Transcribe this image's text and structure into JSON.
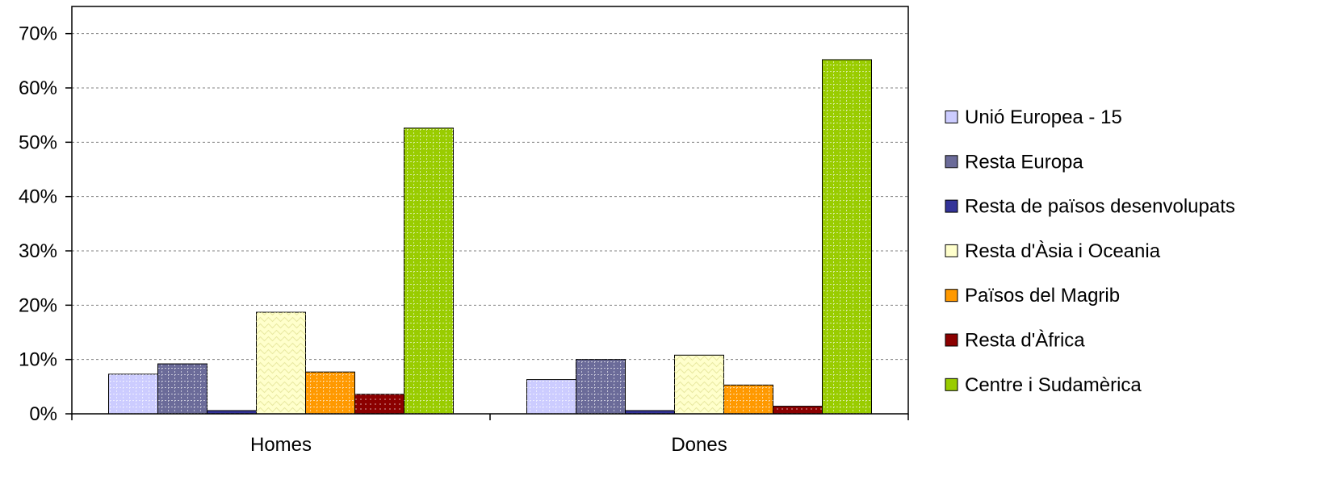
{
  "chart_data": {
    "type": "bar",
    "categories": [
      "Homes",
      "Dones"
    ],
    "y_ticks": [
      "0%",
      "10%",
      "20%",
      "30%",
      "40%",
      "50%",
      "60%",
      "70%"
    ],
    "ylim": [
      0,
      75
    ],
    "grid": true,
    "legend_position": "right",
    "series": [
      {
        "name": "Unió Europea - 15",
        "values": [
          7.3,
          6.3
        ],
        "color": "#ccccff"
      },
      {
        "name": "Resta Europa",
        "values": [
          9.2,
          10.0
        ],
        "color": "#6b6b99"
      },
      {
        "name": "Resta de països desenvolupats",
        "values": [
          0.6,
          0.6
        ],
        "color": "#333399"
      },
      {
        "name": "Resta d'Àsia i Oceania",
        "values": [
          18.7,
          10.8
        ],
        "color": "#ffffcc"
      },
      {
        "name": "Països del Magrib",
        "values": [
          7.7,
          5.3
        ],
        "color": "#ff9900"
      },
      {
        "name": "Resta d'Àfrica",
        "values": [
          3.6,
          1.4
        ],
        "color": "#8b0000"
      },
      {
        "name": "Centre i Sudamèrica",
        "values": [
          52.6,
          65.2
        ],
        "color": "#99cc00"
      }
    ]
  }
}
